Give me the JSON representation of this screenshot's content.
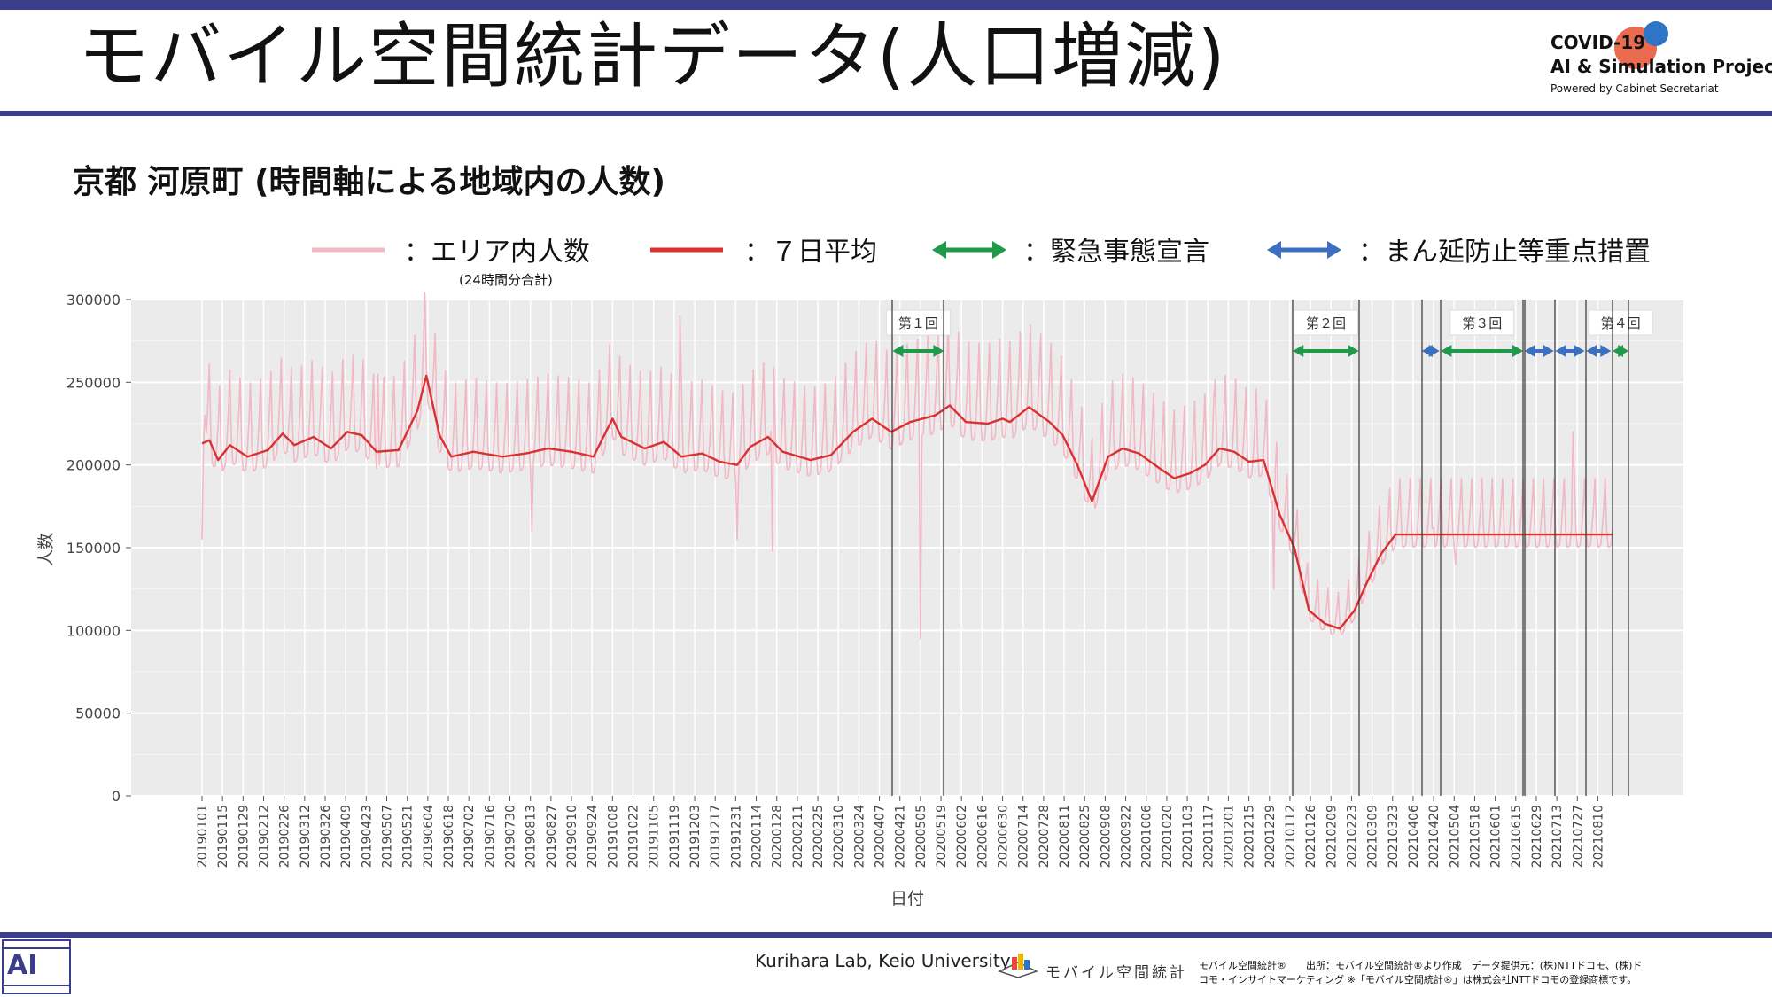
{
  "slide": {
    "title": "モバイル空間統計データ(人口増減)",
    "project_line1": "COVID-19",
    "project_line2": "AI & Simulation Project",
    "project_line3": "Powered by Cabinet Secretariat",
    "chart_heading": "京都 河原町 (時間軸による地域内の人数)",
    "footer_lab": "Kurihara Lab, Keio University",
    "footer_brand": "モバイル空間統計",
    "footer_credit_1": "モバイル空間統計®　　出所：モバイル空間統計®より作成　データ提供元：(株)NTTドコモ、(株)ド",
    "footer_credit_2": "コモ・インサイトマーケティング ※「モバイル空間統計®」は株式会社NTTドコモの登録商標です。",
    "footer_logo_text": "AI"
  },
  "legend": [
    {
      "label": "：エリア内人数",
      "sublabel": "(24時間分合計)",
      "color": "#f2b8c6"
    },
    {
      "label": "：７日平均",
      "sublabel": "",
      "color": "#d93030"
    },
    {
      "label": "：緊急事態宣言",
      "sublabel": "",
      "color": "#1f9a4a"
    },
    {
      "label": "：まん延防止等重点措置",
      "sublabel": "",
      "color": "#3d6fc0"
    }
  ],
  "colors": {
    "accent_bar": "#3a3d8c",
    "daily": "#f2b8c6",
    "avg": "#d93030",
    "emergency": "#1f9a4a",
    "priority": "#3d6fc0",
    "plot_bg": "#ebebeb"
  },
  "chart_data": {
    "type": "line",
    "title": "",
    "xlabel": "日付",
    "ylabel": "人数",
    "ylim": [
      0,
      300000
    ],
    "yticks": [
      0,
      50000,
      100000,
      150000,
      200000,
      250000,
      300000
    ],
    "ytick_labels": [
      "0",
      "50000",
      "100000",
      "150000",
      "200000",
      "250000",
      "300000"
    ],
    "x_start": "2019-01-01",
    "x_end": "2021-08-20",
    "xtick_labels": [
      "20190101",
      "20190115",
      "20190129",
      "20190212",
      "20190226",
      "20190312",
      "20190326",
      "20190409",
      "20190423",
      "20190507",
      "20190521",
      "20190604",
      "20190618",
      "20190702",
      "20190716",
      "20190730",
      "20190813",
      "20190827",
      "20190910",
      "20190924",
      "20191008",
      "20191022",
      "20191105",
      "20191119",
      "20191203",
      "20191217",
      "20191231",
      "20200114",
      "20200128",
      "20200211",
      "20200225",
      "20200310",
      "20200324",
      "20200407",
      "20200421",
      "20200505",
      "20200519",
      "20200602",
      "20200616",
      "20200630",
      "20200714",
      "20200728",
      "20200811",
      "20200825",
      "20200908",
      "20200922",
      "20201006",
      "20201020",
      "20201103",
      "20201117",
      "20201201",
      "20201215",
      "20201229",
      "20210112",
      "20210126",
      "20210209",
      "20210223",
      "20210309",
      "20210323",
      "20210406",
      "20210420",
      "20210504",
      "20210518",
      "20210601",
      "20210615",
      "20210629",
      "20210713",
      "20210727",
      "20210810"
    ],
    "series": [
      {
        "name": "エリア内人数",
        "style": "daily",
        "weekly_amplitude": [
          45000,
          5000,
          -10000,
          -10000,
          -8000,
          5000,
          22000
        ],
        "points": [
          [
            "2019-01-01",
            155000
          ],
          [
            "2019-01-02",
            215000
          ],
          [
            "2019-01-03",
            230000
          ],
          [
            "2019-05-01",
            255000
          ],
          [
            "2019-08-14",
            160000
          ],
          [
            "2019-11-23",
            290000
          ],
          [
            "2020-01-01",
            155000
          ],
          [
            "2020-01-25",
            148000
          ],
          [
            "2020-05-05",
            95000
          ],
          [
            "2020-11-21",
            240000
          ],
          [
            "2021-01-01",
            125000
          ],
          [
            "2021-04-20",
            162000
          ],
          [
            "2021-05-05",
            140000
          ],
          [
            "2021-07-24",
            220000
          ]
        ]
      },
      {
        "name": "７日平均",
        "style": "avg",
        "points": [
          [
            "2019-01-01",
            213000
          ],
          [
            "2019-01-06",
            215000
          ],
          [
            "2019-01-12",
            203000
          ],
          [
            "2019-01-20",
            212000
          ],
          [
            "2019-02-01",
            205000
          ],
          [
            "2019-02-15",
            209000
          ],
          [
            "2019-02-25",
            219000
          ],
          [
            "2019-03-05",
            212000
          ],
          [
            "2019-03-18",
            217000
          ],
          [
            "2019-03-30",
            210000
          ],
          [
            "2019-04-10",
            220000
          ],
          [
            "2019-04-20",
            218000
          ],
          [
            "2019-04-30",
            208000
          ],
          [
            "2019-05-15",
            209000
          ],
          [
            "2019-05-28",
            233000
          ],
          [
            "2019-06-03",
            254000
          ],
          [
            "2019-06-12",
            218000
          ],
          [
            "2019-06-20",
            205000
          ],
          [
            "2019-07-05",
            208000
          ],
          [
            "2019-07-25",
            205000
          ],
          [
            "2019-08-10",
            207000
          ],
          [
            "2019-08-25",
            210000
          ],
          [
            "2019-09-10",
            208000
          ],
          [
            "2019-09-25",
            205000
          ],
          [
            "2019-10-08",
            228000
          ],
          [
            "2019-10-14",
            217000
          ],
          [
            "2019-10-30",
            210000
          ],
          [
            "2019-11-12",
            214000
          ],
          [
            "2019-11-24",
            205000
          ],
          [
            "2019-12-08",
            207000
          ],
          [
            "2019-12-20",
            202000
          ],
          [
            "2020-01-01",
            200000
          ],
          [
            "2020-01-10",
            211000
          ],
          [
            "2020-01-22",
            217000
          ],
          [
            "2020-02-01",
            208000
          ],
          [
            "2020-02-20",
            203000
          ],
          [
            "2020-03-05",
            206000
          ],
          [
            "2020-03-20",
            220000
          ],
          [
            "2020-04-02",
            228000
          ],
          [
            "2020-04-15",
            220000
          ],
          [
            "2020-04-28",
            226000
          ],
          [
            "2020-05-15",
            230000
          ],
          [
            "2020-05-25",
            236000
          ],
          [
            "2020-06-05",
            226000
          ],
          [
            "2020-06-20",
            225000
          ],
          [
            "2020-06-30",
            228000
          ],
          [
            "2020-07-05",
            226000
          ],
          [
            "2020-07-18",
            235000
          ],
          [
            "2020-08-01",
            226000
          ],
          [
            "2020-08-10",
            218000
          ],
          [
            "2020-08-20",
            200000
          ],
          [
            "2020-08-30",
            178000
          ],
          [
            "2020-09-10",
            205000
          ],
          [
            "2020-09-20",
            210000
          ],
          [
            "2020-10-01",
            207000
          ],
          [
            "2020-10-15",
            198000
          ],
          [
            "2020-10-25",
            192000
          ],
          [
            "2020-11-05",
            195000
          ],
          [
            "2020-11-15",
            200000
          ],
          [
            "2020-11-25",
            210000
          ],
          [
            "2020-12-05",
            208000
          ],
          [
            "2020-12-15",
            202000
          ],
          [
            "2020-12-25",
            203000
          ],
          [
            "2021-01-05",
            170000
          ],
          [
            "2021-01-15",
            150000
          ],
          [
            "2021-01-25",
            112000
          ],
          [
            "2021-02-05",
            104000
          ],
          [
            "2021-02-15",
            101000
          ],
          [
            "2021-02-25",
            112000
          ],
          [
            "2021-03-05",
            128000
          ],
          [
            "2021-03-15",
            146000
          ],
          [
            "2021-03-25",
            158000
          ]
        ]
      }
    ]
  },
  "periods": {
    "emergency_labels": [
      "第１回",
      "第２回",
      "第３回",
      "第４回"
    ],
    "emergency": [
      {
        "start": "2020-04-16",
        "end": "2020-05-21"
      },
      {
        "start": "2021-01-14",
        "end": "2021-02-28"
      },
      {
        "start": "2021-04-25",
        "end": "2021-06-20"
      },
      {
        "start": "2021-08-20",
        "end": "2021-08-31"
      }
    ],
    "priority": [
      {
        "start": "2021-04-12",
        "end": "2021-04-24"
      },
      {
        "start": "2021-06-21",
        "end": "2021-07-11"
      },
      {
        "start": "2021-07-12",
        "end": "2021-08-01"
      },
      {
        "start": "2021-08-02",
        "end": "2021-08-19"
      }
    ]
  }
}
